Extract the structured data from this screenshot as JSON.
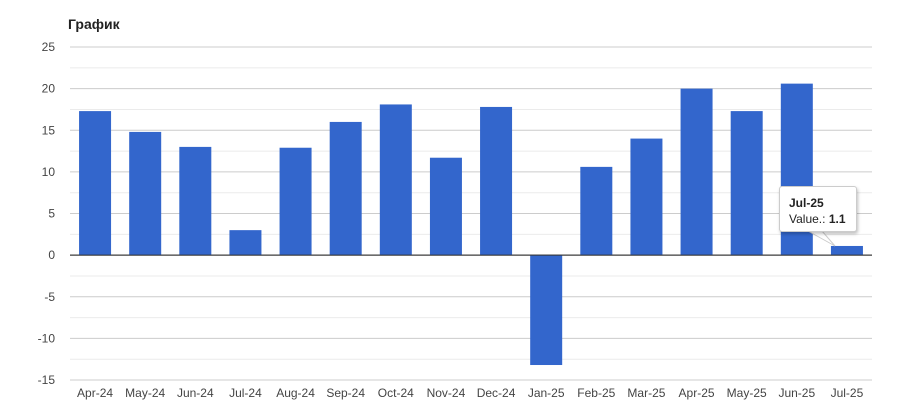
{
  "chart_data": {
    "type": "bar",
    "title": "График",
    "categories": [
      "Apr-24",
      "May-24",
      "Jun-24",
      "Jul-24",
      "Aug-24",
      "Sep-24",
      "Oct-24",
      "Nov-24",
      "Dec-24",
      "Jan-25",
      "Feb-25",
      "Mar-25",
      "Apr-25",
      "May-25",
      "Jun-25",
      "Jul-25"
    ],
    "values": [
      17.3,
      14.8,
      13.0,
      3.0,
      12.9,
      16.0,
      18.1,
      11.7,
      17.8,
      -13.2,
      10.6,
      14.0,
      20.0,
      17.3,
      20.6,
      1.1
    ],
    "ylim": [
      -15,
      25
    ],
    "yticks": [
      25,
      20,
      15,
      10,
      5,
      0,
      -5,
      -10,
      -15
    ],
    "grid": true,
    "bar_color": "#3366cc",
    "tooltip": {
      "category": "Jul-25",
      "label": "Value.:",
      "value": "1.1"
    }
  }
}
